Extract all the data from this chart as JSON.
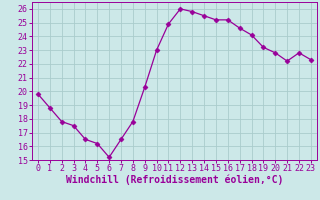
{
  "x": [
    0,
    1,
    2,
    3,
    4,
    5,
    6,
    7,
    8,
    9,
    10,
    11,
    12,
    13,
    14,
    15,
    16,
    17,
    18,
    19,
    20,
    21,
    22,
    23
  ],
  "y": [
    19.8,
    18.8,
    17.8,
    17.5,
    16.5,
    16.2,
    15.2,
    16.5,
    17.8,
    20.3,
    23.0,
    24.9,
    26.0,
    25.8,
    25.5,
    25.2,
    25.2,
    24.6,
    24.1,
    23.2,
    22.8,
    22.2,
    22.8,
    22.3
  ],
  "line_color": "#990099",
  "marker": "D",
  "marker_size": 2.5,
  "bg_color": "#cce8e8",
  "grid_color": "#aacccc",
  "xlabel": "Windchill (Refroidissement éolien,°C)",
  "xlabel_color": "#990099",
  "xlim": [
    -0.5,
    23.5
  ],
  "ylim": [
    15,
    26.5
  ],
  "yticks": [
    15,
    16,
    17,
    18,
    19,
    20,
    21,
    22,
    23,
    24,
    25,
    26
  ],
  "xticks": [
    0,
    1,
    2,
    3,
    4,
    5,
    6,
    7,
    8,
    9,
    10,
    11,
    12,
    13,
    14,
    15,
    16,
    17,
    18,
    19,
    20,
    21,
    22,
    23
  ],
  "tick_color": "#990099",
  "tick_labelsize": 6,
  "xlabel_fontsize": 7
}
